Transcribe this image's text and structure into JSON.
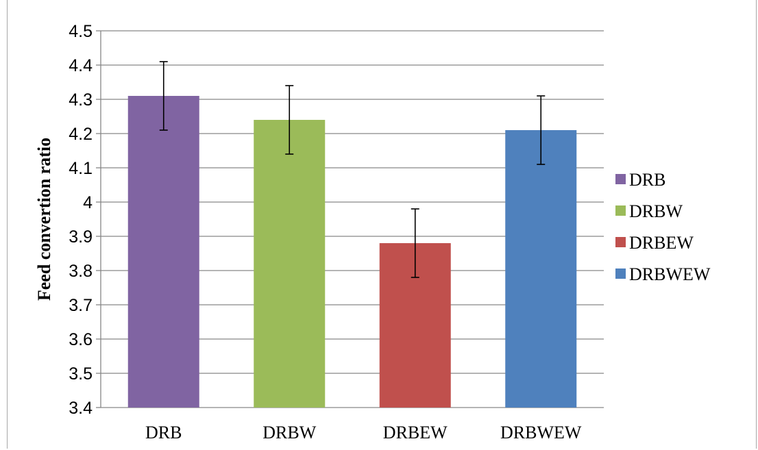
{
  "chart_data": {
    "type": "bar",
    "title": "",
    "xlabel": "",
    "ylabel": "Feed convertion ratio",
    "categories": [
      "DRB",
      "DRBW",
      "DRBEW",
      "DRBWEW"
    ],
    "values": [
      4.31,
      4.24,
      3.88,
      4.21
    ],
    "errors": [
      0.1,
      0.1,
      0.1,
      0.1
    ],
    "colors": [
      "#8064a2",
      "#9bbb59",
      "#c0504d",
      "#4f81bd"
    ],
    "ylim": [
      3.4,
      4.5
    ],
    "yticks": [
      "3.4",
      "3.5",
      "3.6",
      "3.7",
      "3.8",
      "3.9",
      "4",
      "4.1",
      "4.2",
      "4.3",
      "4.4",
      "4.5"
    ],
    "grid": true,
    "legend": {
      "placement": "right",
      "entries": [
        "DRB",
        "DRBW",
        "DRBEW",
        "DRBWEW"
      ]
    }
  }
}
